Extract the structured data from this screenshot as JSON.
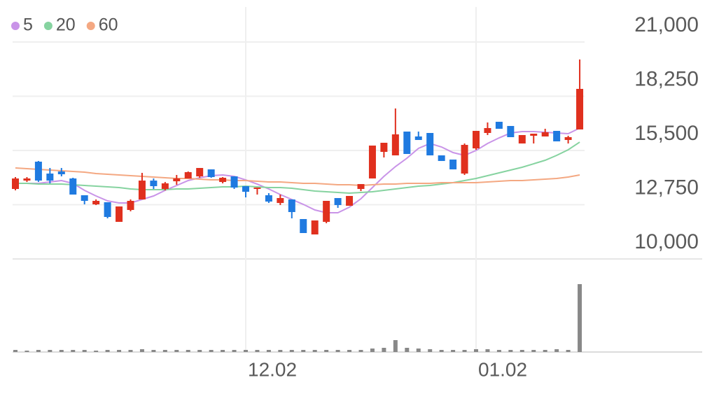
{
  "chart_data": {
    "type": "candlestick",
    "categories": [
      null,
      null,
      null,
      null,
      null,
      null,
      null,
      null,
      null,
      null,
      null,
      null,
      null,
      null,
      null,
      null,
      null,
      null,
      null,
      null,
      "12.02",
      null,
      null,
      null,
      null,
      null,
      null,
      null,
      null,
      null,
      null,
      null,
      null,
      null,
      null,
      null,
      null,
      null,
      null,
      null,
      "01.02",
      null,
      null,
      null,
      null,
      null,
      null,
      null,
      null,
      null
    ],
    "open": [
      13548,
      13973,
      14932,
      14329,
      14435,
      14080,
      13229,
      12767,
      12874,
      11880,
      12484,
      13016,
      13973,
      13548,
      13938,
      14080,
      14187,
      14541,
      13902,
      14187,
      13690,
      13548,
      13229,
      12838,
      13016,
      12022,
      11242,
      11880,
      13087,
      12697,
      13548,
      14080,
      15428,
      15251,
      16458,
      16210,
      16387,
      15251,
      15038,
      14329,
      15606,
      16387,
      16954,
      16741,
      15854,
      16245,
      16209,
      16493,
      16032,
      16565
    ],
    "high": [
      14151,
      14151,
      14967,
      14612,
      14612,
      14116,
      13229,
      13016,
      12874,
      12661,
      13016,
      14364,
      14080,
      13902,
      14258,
      14435,
      14612,
      14541,
      14151,
      14187,
      13690,
      13619,
      13335,
      13264,
      13016,
      12022,
      11951,
      12945,
      13087,
      13193,
      13796,
      15748,
      15890,
      17628,
      16458,
      16458,
      16387,
      15251,
      15038,
      15854,
      16493,
      16919,
      16954,
      16741,
      16281,
      16351,
      16600,
      16493,
      16245,
      20113
    ],
    "low": [
      13477,
      13902,
      13902,
      13832,
      14187,
      13264,
      12767,
      12732,
      12058,
      11880,
      12413,
      13016,
      13548,
      13477,
      13761,
      14080,
      14116,
      14116,
      13832,
      13548,
      13122,
      13264,
      12838,
      12732,
      12058,
      11313,
      11242,
      11809,
      12590,
      12697,
      13442,
      14080,
      15145,
      15251,
      15322,
      16032,
      15251,
      14967,
      14541,
      14258,
      15535,
      16281,
      16599,
      16174,
      15854,
      15854,
      16209,
      15961,
      15854,
      16565
    ],
    "close": [
      14080,
      14080,
      13973,
      13973,
      14293,
      13264,
      12945,
      12945,
      12129,
      12661,
      12945,
      13973,
      13690,
      13832,
      14080,
      14400,
      14612,
      14151,
      14116,
      13619,
      13406,
      13619,
      12909,
      13087,
      12377,
      11313,
      11951,
      12945,
      12732,
      13193,
      13796,
      15748,
      15890,
      16316,
      15322,
      16032,
      15251,
      14967,
      14541,
      15783,
      16493,
      16635,
      16599,
      16174,
      16281,
      16351,
      16422,
      15961,
      16174,
      18622
    ],
    "up_color": "#e0301e",
    "down_color": "#1f7ae0",
    "series": [
      {
        "name": "5",
        "color": "#c994e8",
        "values": [
          13832,
          13832,
          13832,
          13903,
          13974,
          13832,
          13477,
          13193,
          12945,
          12838,
          12838,
          13016,
          13193,
          13477,
          13725,
          13974,
          14116,
          14222,
          14258,
          14187,
          14009,
          13796,
          13548,
          13264,
          13016,
          12767,
          12484,
          12342,
          12342,
          12626,
          13051,
          13619,
          14187,
          14683,
          15109,
          15606,
          15854,
          15677,
          15393,
          15251,
          15499,
          15854,
          16138,
          16386,
          16457,
          16457,
          16422,
          16386,
          16351,
          16635
        ]
      },
      {
        "name": "20",
        "color": "#86d3a0",
        "values": [
          13832,
          13832,
          13796,
          13796,
          13796,
          13761,
          13725,
          13690,
          13654,
          13619,
          13548,
          13512,
          13512,
          13512,
          13548,
          13548,
          13583,
          13619,
          13654,
          13654,
          13690,
          13654,
          13619,
          13619,
          13583,
          13512,
          13442,
          13406,
          13371,
          13335,
          13371,
          13406,
          13477,
          13548,
          13619,
          13690,
          13725,
          13796,
          13867,
          13974,
          14080,
          14222,
          14364,
          14506,
          14648,
          14825,
          15003,
          15251,
          15535,
          15925
        ]
      },
      {
        "name": "60",
        "color": "#f4a882",
        "values": [
          14612,
          14577,
          14541,
          14506,
          14470,
          14435,
          14400,
          14329,
          14293,
          14258,
          14222,
          14187,
          14151,
          14116,
          14080,
          14080,
          14045,
          14009,
          14009,
          13974,
          13974,
          13938,
          13903,
          13903,
          13867,
          13832,
          13832,
          13796,
          13761,
          13761,
          13725,
          13761,
          13796,
          13796,
          13832,
          13832,
          13832,
          13867,
          13867,
          13867,
          13867,
          13903,
          13938,
          13974,
          13974,
          14009,
          14045,
          14080,
          14151,
          14258
        ]
      }
    ],
    "volume": [
      30000,
      20000,
      30000,
      30000,
      30000,
      30000,
      30000,
      20000,
      30000,
      30000,
      30000,
      40000,
      30000,
      30000,
      30000,
      30000,
      30000,
      30000,
      30000,
      30000,
      30000,
      30000,
      30000,
      30000,
      30000,
      30000,
      30000,
      30000,
      30000,
      30000,
      30000,
      50000,
      60000,
      170000,
      60000,
      50000,
      40000,
      30000,
      30000,
      30000,
      40000,
      40000,
      30000,
      30000,
      30000,
      30000,
      30000,
      40000,
      30000,
      970000
    ],
    "volume_color": "#888888",
    "ylim": [
      10000,
      21000
    ],
    "yticks": [
      {
        "value": 10000,
        "label": "10,000"
      },
      {
        "value": 12750,
        "label": "12,750"
      },
      {
        "value": 15500,
        "label": "15,500"
      },
      {
        "value": 18250,
        "label": "18,250"
      },
      {
        "value": 21000,
        "label": "21,000"
      }
    ],
    "grid": true
  }
}
